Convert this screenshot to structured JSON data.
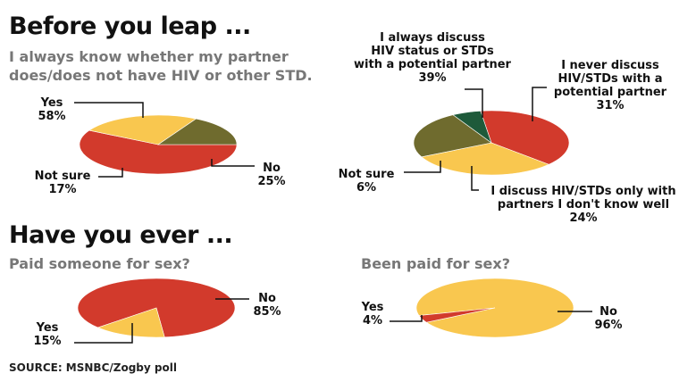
{
  "headings": {
    "section1": "Before you leap ...",
    "section2": "Have you ever ..."
  },
  "subtitles": {
    "q1_line1": "I always know whether my partner",
    "q1_line2": "does/does not have HIV or other STD.",
    "q3": "Paid someone for sex?",
    "q4": "Been paid for sex?"
  },
  "source": "SOURCE: MSNBC/Zogby poll",
  "colors": {
    "red": "#d23a2c",
    "yellow": "#f9c74f",
    "olive": "#6f6b2e",
    "green": "#1e5a3a",
    "leader": "#111111"
  },
  "chart_data": [
    {
      "type": "pie",
      "question": "I always know whether my partner does/does not have HIV or other STD.",
      "slices": [
        {
          "label": "Yes",
          "value": 58,
          "value_label": "58%",
          "color": "#d23a2c"
        },
        {
          "label": "No",
          "value": 25,
          "value_label": "25%",
          "color": "#f9c74f"
        },
        {
          "label": "Not sure",
          "value": 17,
          "value_label": "17%",
          "color": "#6f6b2e"
        }
      ]
    },
    {
      "type": "pie",
      "slices": [
        {
          "label": "I always discuss HIV status or STDs with a potential partner",
          "value": 39,
          "value_label": "39%",
          "color": "#d23a2c"
        },
        {
          "label": "I never discuss HIV/STDs with a potential partner",
          "value": 31,
          "value_label": "31%",
          "color": "#f9c74f"
        },
        {
          "label": "I discuss HIV/STDs only with partners I don't know well",
          "value": 24,
          "value_label": "24%",
          "color": "#6f6b2e"
        },
        {
          "label": "Not sure",
          "value": 6,
          "value_label": "6%",
          "color": "#1e5a3a"
        }
      ]
    },
    {
      "type": "pie",
      "question": "Paid someone for sex?",
      "slices": [
        {
          "label": "No",
          "value": 85,
          "value_label": "85%",
          "color": "#d23a2c"
        },
        {
          "label": "Yes",
          "value": 15,
          "value_label": "15%",
          "color": "#f9c74f"
        }
      ]
    },
    {
      "type": "pie",
      "question": "Been paid for sex?",
      "slices": [
        {
          "label": "No",
          "value": 96,
          "value_label": "96%",
          "color": "#f9c74f"
        },
        {
          "label": "Yes",
          "value": 4,
          "value_label": "4%",
          "color": "#d23a2c"
        }
      ]
    }
  ]
}
